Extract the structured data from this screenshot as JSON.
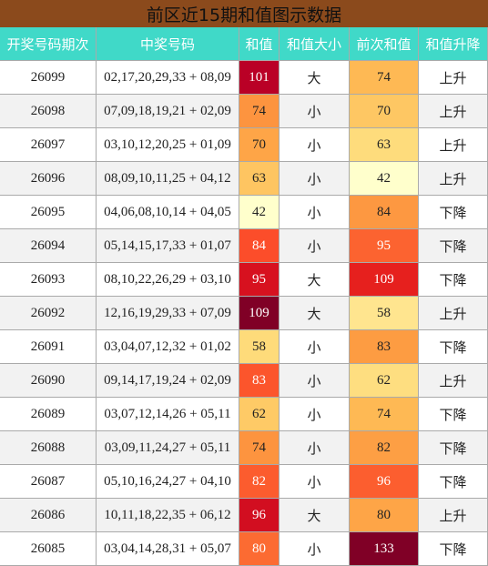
{
  "title": "前区近15期和值图示数据",
  "table": {
    "header": [
      "开奖号码期次",
      "中奖号码",
      "和值",
      "和值大小",
      "前次和值",
      "和值升降"
    ],
    "rows": [
      [
        "26099",
        "02,17,20,29,33 + 08,09",
        101,
        "大",
        74,
        "上升"
      ],
      [
        "26098",
        "07,09,18,19,21 + 02,09",
        74,
        "小",
        70,
        "上升"
      ],
      [
        "26097",
        "03,10,12,20,25 + 01,09",
        70,
        "小",
        63,
        "上升"
      ],
      [
        "26096",
        "08,09,10,11,25 + 04,12",
        63,
        "小",
        42,
        "上升"
      ],
      [
        "26095",
        "04,06,08,10,14 + 04,05",
        42,
        "小",
        84,
        "下降"
      ],
      [
        "26094",
        "05,14,15,17,33 + 01,07",
        84,
        "小",
        95,
        "下降"
      ],
      [
        "26093",
        "08,10,22,26,29 + 03,10",
        95,
        "大",
        109,
        "下降"
      ],
      [
        "26092",
        "12,16,19,29,33 + 07,09",
        109,
        "大",
        58,
        "上升"
      ],
      [
        "26091",
        "03,04,07,12,32 + 01,02",
        58,
        "小",
        83,
        "下降"
      ],
      [
        "26090",
        "09,14,17,19,24 + 02,09",
        83,
        "小",
        62,
        "上升"
      ],
      [
        "26089",
        "03,07,12,14,26 + 05,11",
        62,
        "小",
        74,
        "下降"
      ],
      [
        "26088",
        "03,09,11,24,27 + 05,11",
        74,
        "小",
        82,
        "下降"
      ],
      [
        "26087",
        "05,10,16,24,27 + 04,10",
        82,
        "小",
        96,
        "下降"
      ],
      [
        "26086",
        "10,11,18,22,35 + 06,12",
        96,
        "大",
        80,
        "上升"
      ],
      [
        "26085",
        "03,04,14,28,31 + 05,07",
        80,
        "小",
        133,
        "下降"
      ]
    ]
  }
}
